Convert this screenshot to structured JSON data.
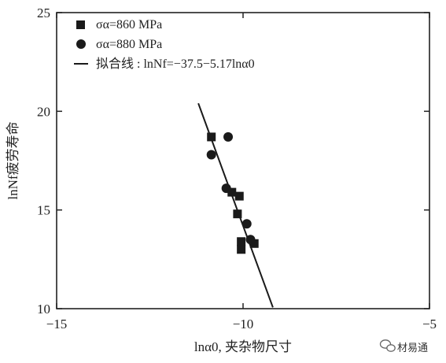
{
  "chart_data": {
    "type": "scatter",
    "title": "",
    "xlabel": "lnα0, 夹杂物尺寸",
    "ylabel": "lnNf疲劳寿命",
    "xlim": [
      -15,
      -5
    ],
    "ylim": [
      10,
      25
    ],
    "xticks": [
      -15,
      -10,
      -5
    ],
    "xtick_labels": [
      "−15",
      "−10",
      "−5"
    ],
    "yticks": [
      10,
      15,
      20,
      25
    ],
    "ytick_labels": [
      "10",
      "15",
      "20",
      "25"
    ],
    "grid": false,
    "legend_position": "top-left",
    "series": [
      {
        "name": "σα=860 MPa",
        "marker": "square",
        "points": [
          {
            "x": -10.85,
            "y": 18.7
          },
          {
            "x": -10.3,
            "y": 15.9
          },
          {
            "x": -10.1,
            "y": 15.7
          },
          {
            "x": -10.15,
            "y": 14.8
          },
          {
            "x": -10.05,
            "y": 13.4
          },
          {
            "x": -10.05,
            "y": 13.0
          },
          {
            "x": -9.7,
            "y": 13.3
          }
        ]
      },
      {
        "name": "σα=880 MPa",
        "marker": "circle",
        "points": [
          {
            "x": -10.85,
            "y": 17.8
          },
          {
            "x": -10.4,
            "y": 18.7
          },
          {
            "x": -10.45,
            "y": 16.1
          },
          {
            "x": -9.9,
            "y": 14.3
          },
          {
            "x": -9.8,
            "y": 13.5
          }
        ]
      }
    ],
    "fit_line": {
      "name": "拟合线 : lnNf=−37.5−5.17lnα0",
      "intercept": -37.5,
      "slope": -5.17,
      "x_range": [
        -11.2,
        -9.2
      ]
    }
  },
  "watermark": {
    "text": "材易通",
    "icon": "wechat-icon"
  }
}
